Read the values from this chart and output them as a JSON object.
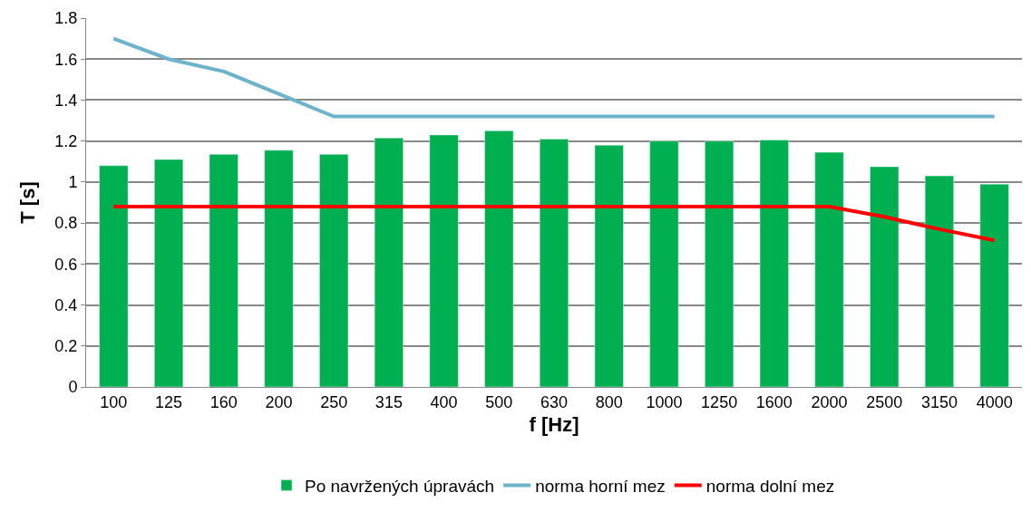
{
  "chart_data": {
    "type": "bar",
    "xlabel": "f [Hz]",
    "ylabel": "T [s]",
    "categories": [
      "100",
      "125",
      "160",
      "200",
      "250",
      "315",
      "400",
      "500",
      "630",
      "800",
      "1000",
      "1250",
      "1600",
      "2000",
      "2500",
      "3150",
      "4000"
    ],
    "series": [
      {
        "name": "Po navržených úpravách",
        "color": "#00b050",
        "values": [
          1.08,
          1.11,
          1.135,
          1.155,
          1.135,
          1.215,
          1.23,
          1.25,
          1.21,
          1.18,
          1.2,
          1.2,
          1.205,
          1.145,
          1.075,
          1.03,
          0.99
        ]
      },
      {
        "name": "norma horní mez",
        "type": "line",
        "color": "#6db3c9",
        "values": [
          1.7,
          1.6,
          1.54,
          1.43,
          1.32,
          1.32,
          1.32,
          1.32,
          1.32,
          1.32,
          1.32,
          1.32,
          1.32,
          1.32,
          1.32,
          1.32,
          1.32
        ]
      },
      {
        "name": "norma dolní mez",
        "type": "line",
        "color": "#ff0000",
        "values": [
          0.88,
          0.88,
          0.88,
          0.88,
          0.88,
          0.88,
          0.88,
          0.88,
          0.88,
          0.88,
          0.88,
          0.88,
          0.88,
          0.88,
          0.83,
          0.77,
          0.715
        ]
      }
    ],
    "ylim": [
      0,
      1.8
    ],
    "yticks": [
      0,
      0.2,
      0.4,
      0.6,
      0.8,
      1,
      1.2,
      1.4,
      1.6,
      1.8
    ],
    "grid": "y",
    "legend": "bottom",
    "marker": "none",
    "line_style": "solid"
  }
}
